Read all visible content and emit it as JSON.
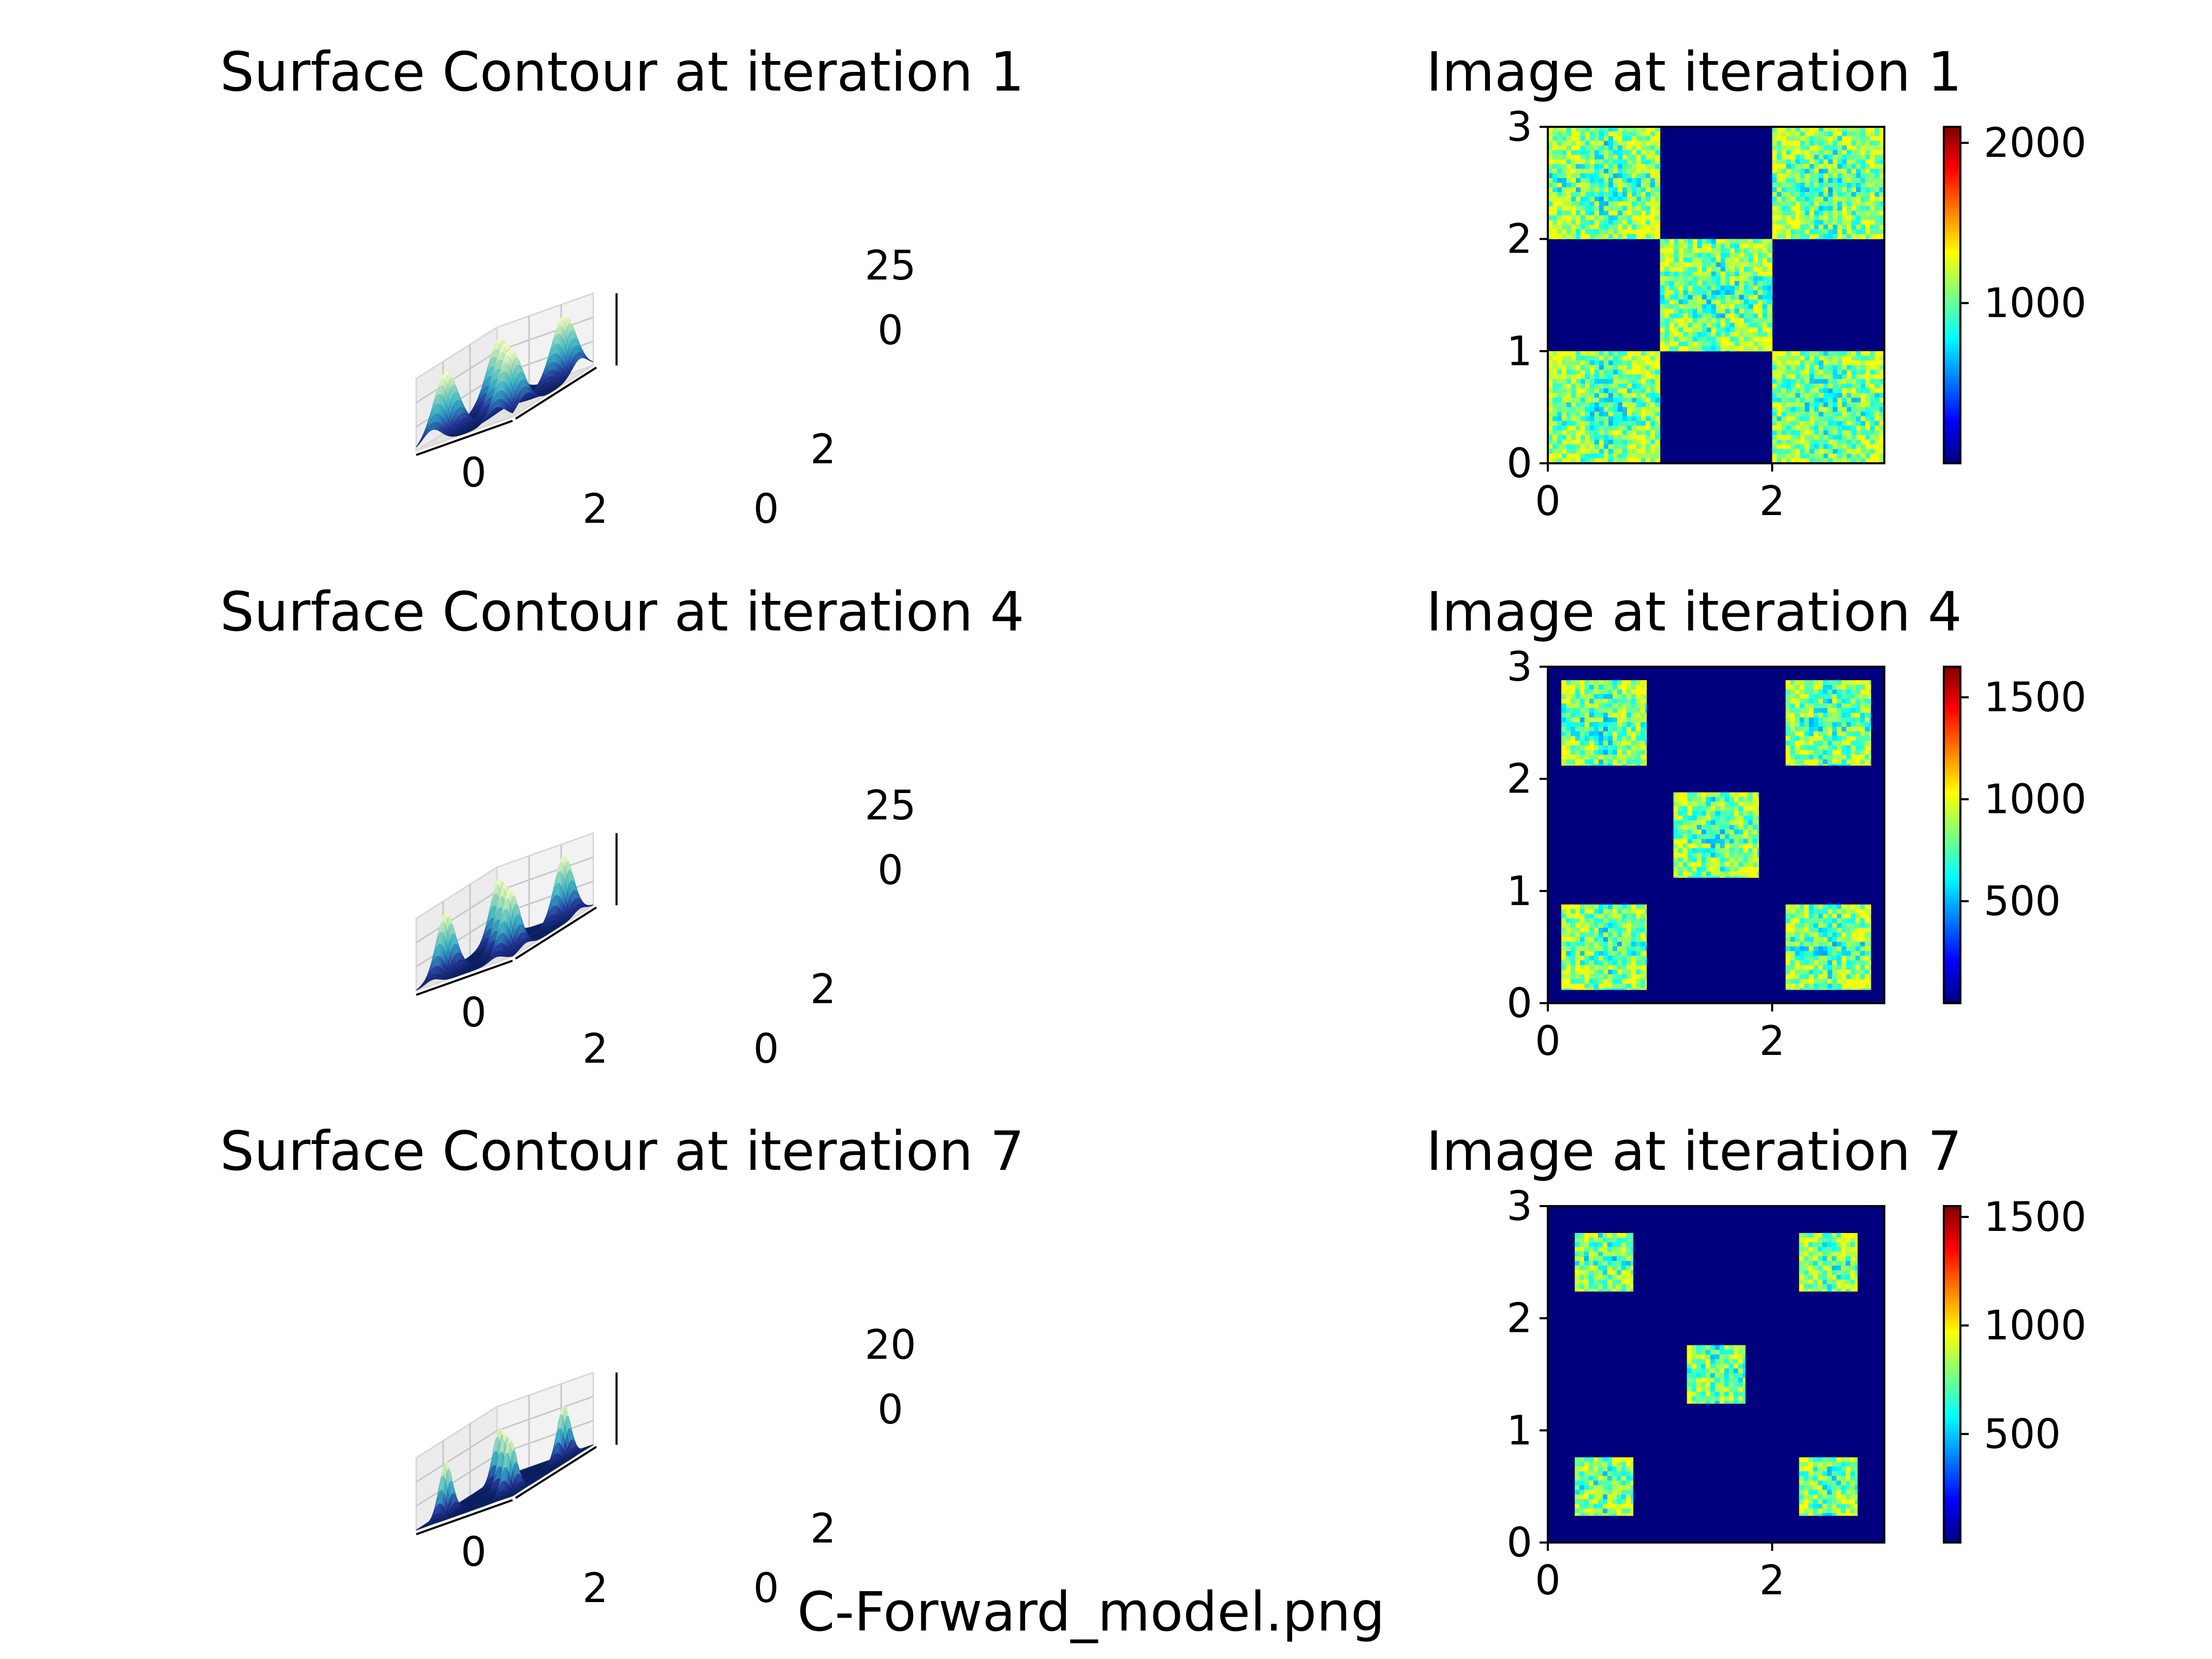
{
  "figure": {
    "caption": "C-Forward_model.png"
  },
  "colormaps": {
    "surface": [
      "#0c2060",
      "#253494",
      "#2c7fb8",
      "#41b6c4",
      "#7fcdbb",
      "#c7e9b4",
      "#ffffcc"
    ],
    "image": [
      "#00007f",
      "#0000ff",
      "#007fff",
      "#00ffff",
      "#7fff7f",
      "#ffff00",
      "#ff7f00",
      "#ff0000",
      "#7f0000"
    ]
  },
  "chart_data": [
    {
      "type": "surface",
      "title": "Surface Contour at iteration 1",
      "x_ticks": [
        "0",
        "2"
      ],
      "y_ticks": [
        "0",
        "2"
      ],
      "z_ticks": [
        "0",
        "25"
      ],
      "iteration": 1,
      "peak_centers": [
        [
          0.5,
          0.5
        ],
        [
          2.5,
          0.5
        ],
        [
          1.5,
          1.5
        ],
        [
          0.5,
          2.5
        ],
        [
          2.5,
          2.5
        ]
      ],
      "peak_height": 40,
      "peak_width": 0.5
    },
    {
      "type": "heatmap",
      "title": "Image at iteration 1",
      "iteration": 1,
      "xlim": [
        0,
        3
      ],
      "ylim": [
        0,
        3
      ],
      "x_ticks": [
        "0",
        "2"
      ],
      "y_ticks": [
        "0",
        "1",
        "2",
        "3"
      ],
      "colorbar": {
        "min": 0,
        "max": 2100,
        "ticks": [
          "1000",
          "2000"
        ]
      },
      "square_centers": [
        [
          0.5,
          0.5
        ],
        [
          2.5,
          0.5
        ],
        [
          1.5,
          1.5
        ],
        [
          0.5,
          2.5
        ],
        [
          2.5,
          2.5
        ]
      ],
      "square_half_width": 0.5
    },
    {
      "type": "surface",
      "title": "Surface Contour at iteration 4",
      "x_ticks": [
        "0",
        "2"
      ],
      "y_ticks": [
        "0",
        "2"
      ],
      "z_ticks": [
        "0",
        "25"
      ],
      "iteration": 4,
      "peak_centers": [
        [
          0.5,
          0.5
        ],
        [
          2.5,
          0.5
        ],
        [
          1.5,
          1.5
        ],
        [
          0.5,
          2.5
        ],
        [
          2.5,
          2.5
        ]
      ],
      "peak_height": 40,
      "peak_width": 0.38
    },
    {
      "type": "heatmap",
      "title": "Image at iteration 4",
      "iteration": 4,
      "xlim": [
        0,
        3
      ],
      "ylim": [
        0,
        3
      ],
      "x_ticks": [
        "0",
        "2"
      ],
      "y_ticks": [
        "0",
        "1",
        "2",
        "3"
      ],
      "colorbar": {
        "min": 0,
        "max": 1650,
        "ticks": [
          "500",
          "1000",
          "1500"
        ]
      },
      "square_centers": [
        [
          0.5,
          0.5
        ],
        [
          2.5,
          0.5
        ],
        [
          1.5,
          1.5
        ],
        [
          0.5,
          2.5
        ],
        [
          2.5,
          2.5
        ]
      ],
      "square_half_width": 0.38
    },
    {
      "type": "surface",
      "title": "Surface Contour at iteration 7",
      "x_ticks": [
        "0",
        "2"
      ],
      "y_ticks": [
        "0",
        "2"
      ],
      "z_ticks": [
        "0",
        "20"
      ],
      "iteration": 7,
      "peak_centers": [
        [
          0.5,
          0.5
        ],
        [
          2.5,
          0.5
        ],
        [
          1.5,
          1.5
        ],
        [
          0.5,
          2.5
        ],
        [
          2.5,
          2.5
        ]
      ],
      "peak_height": 34,
      "peak_width": 0.26
    },
    {
      "type": "heatmap",
      "title": "Image at iteration 7",
      "iteration": 7,
      "xlim": [
        0,
        3
      ],
      "ylim": [
        0,
        3
      ],
      "x_ticks": [
        "0",
        "2"
      ],
      "y_ticks": [
        "0",
        "1",
        "2",
        "3"
      ],
      "colorbar": {
        "min": 0,
        "max": 1550,
        "ticks": [
          "500",
          "1000",
          "1500"
        ]
      },
      "square_centers": [
        [
          0.5,
          0.5
        ],
        [
          2.5,
          0.5
        ],
        [
          1.5,
          1.5
        ],
        [
          0.5,
          2.5
        ],
        [
          2.5,
          2.5
        ]
      ],
      "square_half_width": 0.26
    }
  ]
}
